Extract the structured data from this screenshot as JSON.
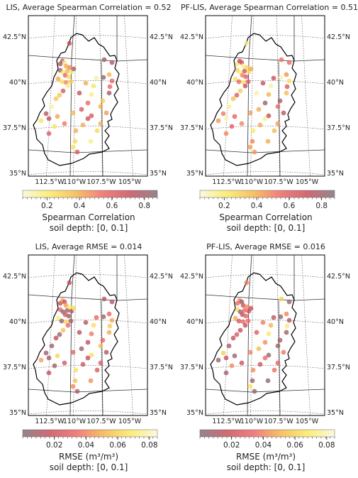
{
  "colors": {
    "corr_scale": [
      "#fbf7d6",
      "#f9e95e",
      "#f5b247",
      "#ee6260",
      "#c34a58",
      "#7c6b6e"
    ],
    "rmse_scale": [
      "#7c6b6e",
      "#c34a58",
      "#ee6260",
      "#f5b247",
      "#f9e95e",
      "#fbf7d6"
    ],
    "basin_outline": "#000000",
    "grid": "#444444"
  },
  "map_axes": {
    "lat_ticks": [
      "35°N",
      "37.5°N",
      "40°N",
      "42.5°N"
    ],
    "lon_ticks": [
      "112.5°W",
      "110°W",
      "107.5°W",
      "105°W"
    ]
  },
  "soil_depth_label": "soil depth: [0, 0.1]",
  "panels": [
    {
      "title": "LIS, Average Spearman Correlation = 0.52",
      "colorbar_label": "Spearman Correlation",
      "colorbar_ticks": [
        "0.2",
        "0.4",
        "0.6",
        "0.8"
      ],
      "colorbar_range": [
        0.05,
        0.88
      ],
      "scale": "corr_scale"
    },
    {
      "title": "PF-LIS, Average Spearman Correlation = 0.51",
      "colorbar_label": "Spearman Correlation",
      "colorbar_ticks": [
        "0.2",
        "0.4",
        "0.6",
        "0.8"
      ],
      "colorbar_range": [
        0.05,
        0.88
      ],
      "scale": "corr_scale"
    },
    {
      "title": "LIS, Average RMSE = 0.014",
      "colorbar_label": "RMSE (m³/m³)",
      "colorbar_ticks": [
        "0.02",
        "0.04",
        "0.06",
        "0.08"
      ],
      "colorbar_range": [
        0.0,
        0.085
      ],
      "scale": "rmse_scale"
    },
    {
      "title": "PF-LIS, Average RMSE = 0.016",
      "colorbar_label": "RMSE (m³/m³)",
      "colorbar_ticks": [
        "0.02",
        "0.04",
        "0.06",
        "0.08"
      ],
      "colorbar_range": [
        0.0,
        0.085
      ],
      "scale": "rmse_scale"
    }
  ]
}
